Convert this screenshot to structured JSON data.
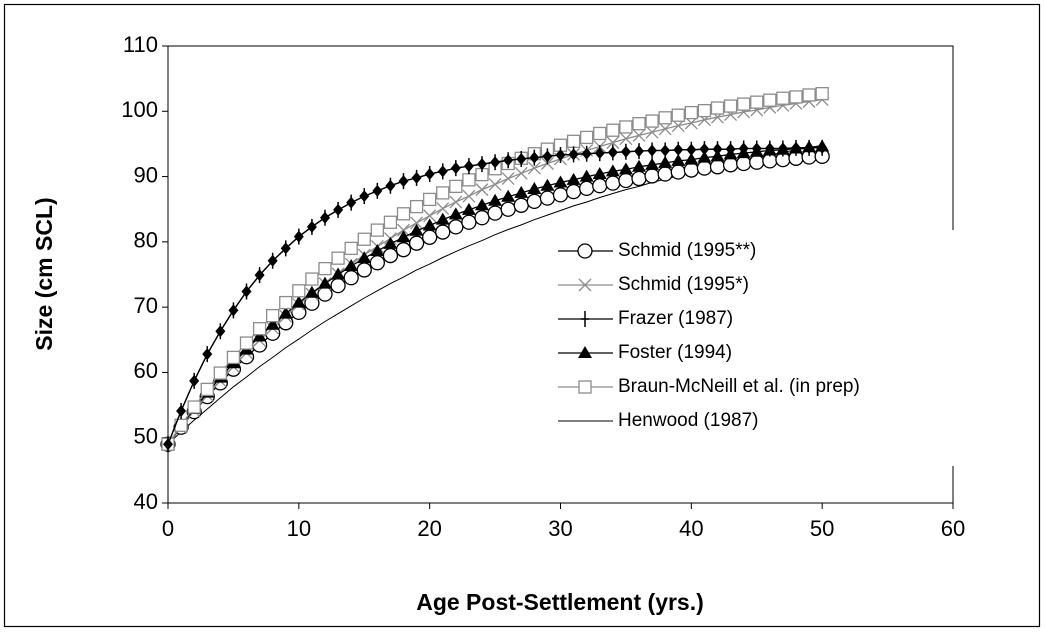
{
  "chart_data": {
    "type": "line",
    "xlabel": "Age Post-Settlement (yrs.)",
    "ylabel": "Size (cm SCL)",
    "xlim": [
      0,
      60
    ],
    "xticks": [
      0,
      10,
      20,
      30,
      40,
      50,
      60
    ],
    "ylim": [
      40,
      110
    ],
    "yticks": [
      40,
      50,
      60,
      70,
      80,
      90,
      100,
      110
    ],
    "legend": "right",
    "x": [
      0,
      1,
      2,
      3,
      4,
      5,
      6,
      7,
      8,
      9,
      10,
      11,
      12,
      13,
      14,
      15,
      16,
      17,
      18,
      19,
      20,
      21,
      22,
      23,
      24,
      25,
      26,
      27,
      28,
      29,
      30,
      31,
      32,
      33,
      34,
      35,
      36,
      37,
      38,
      39,
      40,
      41,
      42,
      43,
      44,
      45,
      46,
      47,
      48,
      49,
      50
    ],
    "series": [
      {
        "name": "Schmid (1995**)",
        "color": "#000000",
        "marker": "circle",
        "values": [
          49.0,
          51.6,
          54.0,
          56.3,
          58.4,
          60.5,
          62.4,
          64.2,
          66.0,
          67.6,
          69.2,
          70.6,
          72.0,
          73.3,
          74.5,
          75.7,
          76.8,
          77.9,
          78.8,
          79.8,
          80.7,
          81.5,
          82.3,
          83.0,
          83.7,
          84.4,
          85.0,
          85.6,
          86.2,
          86.7,
          87.2,
          87.7,
          88.2,
          88.6,
          89.0,
          89.4,
          89.7,
          90.1,
          90.4,
          90.7,
          91.0,
          91.3,
          91.5,
          91.8,
          92.0,
          92.2,
          92.4,
          92.6,
          92.8,
          93.0,
          93.1
        ]
      },
      {
        "name": "Schmid (1995*)",
        "color": "#8c8c8c",
        "marker": "x",
        "values": [
          49.0,
          51.6,
          54.1,
          56.5,
          58.7,
          60.9,
          63.0,
          64.9,
          66.8,
          68.6,
          70.4,
          72.0,
          73.6,
          75.1,
          76.6,
          78.0,
          79.3,
          80.5,
          81.8,
          82.9,
          84.0,
          85.1,
          86.1,
          87.0,
          88.0,
          88.8,
          89.7,
          90.5,
          91.3,
          92.0,
          92.7,
          93.4,
          94.0,
          94.6,
          95.2,
          95.8,
          96.3,
          96.8,
          97.3,
          97.8,
          98.2,
          98.7,
          99.1,
          99.5,
          99.9,
          100.2,
          100.6,
          100.9,
          101.2,
          101.5,
          101.8
        ]
      },
      {
        "name": "Frazer (1987)",
        "color": "#000000",
        "marker": "plus",
        "values": [
          49.0,
          54.1,
          58.7,
          62.8,
          66.3,
          69.5,
          72.4,
          74.9,
          77.1,
          79.0,
          80.8,
          82.3,
          83.7,
          84.9,
          86.0,
          87.0,
          87.8,
          88.6,
          89.3,
          89.8,
          90.4,
          90.8,
          91.3,
          91.6,
          91.9,
          92.2,
          92.5,
          92.7,
          92.9,
          93.1,
          93.3,
          93.4,
          93.5,
          93.6,
          93.7,
          93.8,
          93.9,
          94.0,
          94.0,
          94.1,
          94.1,
          94.2,
          94.2,
          94.2,
          94.3,
          94.3,
          94.3,
          94.3,
          94.4,
          94.4,
          94.4
        ]
      },
      {
        "name": "Foster (1994)",
        "color": "#000000",
        "marker": "triangle",
        "values": [
          49.0,
          51.8,
          54.4,
          56.9,
          59.2,
          61.4,
          63.5,
          65.5,
          67.3,
          69.0,
          70.7,
          72.2,
          73.6,
          75.0,
          76.3,
          77.5,
          78.6,
          79.7,
          80.7,
          81.7,
          82.5,
          83.4,
          84.2,
          84.9,
          85.6,
          86.3,
          86.9,
          87.5,
          88.1,
          88.6,
          89.1,
          89.5,
          90.0,
          90.4,
          90.8,
          91.1,
          91.5,
          91.8,
          92.1,
          92.4,
          92.6,
          92.9,
          93.1,
          93.4,
          93.6,
          93.8,
          94.0,
          94.1,
          94.3,
          94.5,
          94.6
        ]
      },
      {
        "name": "Braun-McNeill et al. (in prep)",
        "color": "#8c8c8c",
        "marker": "square",
        "values": [
          49.0,
          51.9,
          54.7,
          57.4,
          59.9,
          62.3,
          64.5,
          66.7,
          68.7,
          70.7,
          72.5,
          74.3,
          75.9,
          77.5,
          79.0,
          80.4,
          81.8,
          83.0,
          84.3,
          85.4,
          86.5,
          87.5,
          88.5,
          89.5,
          90.3,
          91.2,
          92.0,
          92.8,
          93.5,
          94.2,
          94.8,
          95.4,
          96.0,
          96.6,
          97.1,
          97.6,
          98.1,
          98.5,
          99.0,
          99.4,
          99.8,
          100.1,
          100.5,
          100.8,
          101.1,
          101.4,
          101.7,
          102.0,
          102.2,
          102.5,
          102.7
        ]
      },
      {
        "name": "Henwood (1987)",
        "color": "#000000",
        "marker": "none",
        "values": [
          49.0,
          50.9,
          52.7,
          54.4,
          56.1,
          57.8,
          59.3,
          60.9,
          62.3,
          63.8,
          65.1,
          66.5,
          67.8,
          69.0,
          70.2,
          71.4,
          72.5,
          73.6,
          74.6,
          75.7,
          76.6,
          77.6,
          78.5,
          79.4,
          80.2,
          81.1,
          81.9,
          82.6,
          83.4,
          84.1,
          84.8,
          85.5,
          86.1,
          86.8,
          87.4,
          88.0,
          88.5,
          89.1,
          89.6,
          90.1,
          90.6,
          91.1,
          91.6,
          92.0,
          92.5,
          92.9,
          93.3,
          93.7,
          94.1,
          94.4,
          94.8
        ]
      },
      {
        "color": "#000000",
        "marker": "diamond",
        "values": [
          49.0,
          54.1,
          58.7,
          62.8,
          66.3,
          69.5,
          72.4,
          74.9,
          77.1,
          79.0,
          80.8,
          82.3,
          83.7,
          84.9,
          86.0,
          87.0,
          87.8,
          88.6,
          89.3,
          89.8,
          90.4,
          90.8,
          91.3,
          91.6,
          91.9,
          92.2,
          92.5,
          92.7,
          92.9,
          93.1,
          93.3,
          93.4,
          93.5,
          93.6,
          93.7,
          93.8,
          93.9,
          94.0,
          94.0,
          94.1,
          94.1,
          94.2,
          94.2,
          94.2,
          94.3,
          94.3,
          94.3,
          94.3,
          94.4,
          94.4,
          94.4
        ]
      }
    ]
  }
}
